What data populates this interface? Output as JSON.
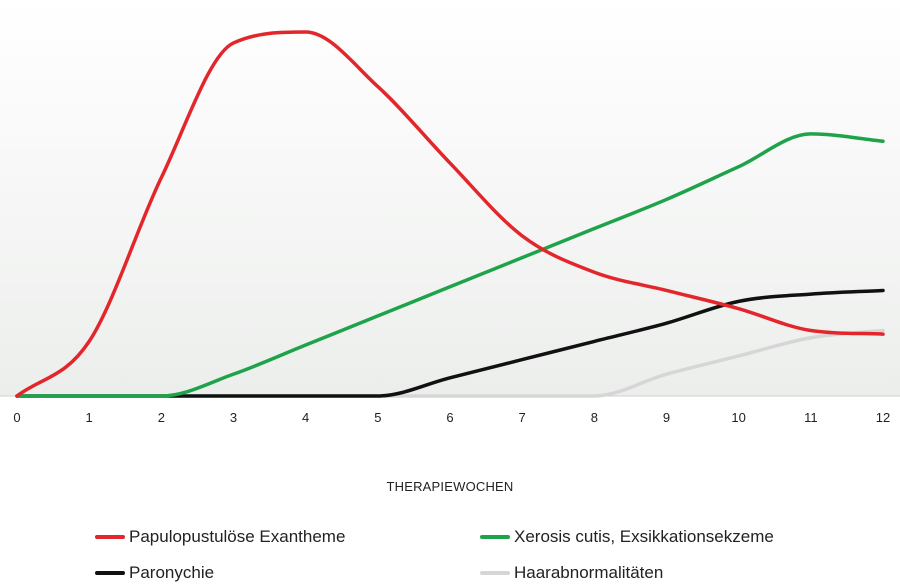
{
  "chart_data": {
    "type": "line",
    "title": "",
    "xlabel": "THERAPIEWOCHEN",
    "ylabel": "",
    "x": [
      0,
      1,
      2,
      3,
      4,
      5,
      6,
      7,
      8,
      9,
      10,
      11,
      12
    ],
    "xlim": [
      0,
      12
    ],
    "ylim": [
      0,
      100
    ],
    "grid": false,
    "legend_position": "bottom",
    "series": [
      {
        "name": "Papulopustulöse Exantheme",
        "color": "#e3262b",
        "values": [
          0,
          15,
          60,
          97,
          100,
          85,
          64,
          44,
          34,
          29,
          24,
          18,
          17
        ]
      },
      {
        "name": "Xerosis cutis, Exsikkationsekzeme",
        "color": "#1ea34a",
        "values": [
          0,
          0,
          0,
          6,
          14,
          22,
          30,
          38,
          46,
          54,
          63,
          72,
          70
        ]
      },
      {
        "name": "Paronychie",
        "color": "#111111",
        "values": [
          0,
          0,
          0,
          0,
          0,
          0,
          5,
          10,
          15,
          20,
          26,
          28,
          29
        ]
      },
      {
        "name": "Haarabnormalitäten",
        "color": "#d6d6d6",
        "values": [
          0,
          0,
          0,
          0,
          0,
          0,
          0,
          0,
          0,
          6,
          11,
          16,
          18
        ]
      }
    ]
  }
}
